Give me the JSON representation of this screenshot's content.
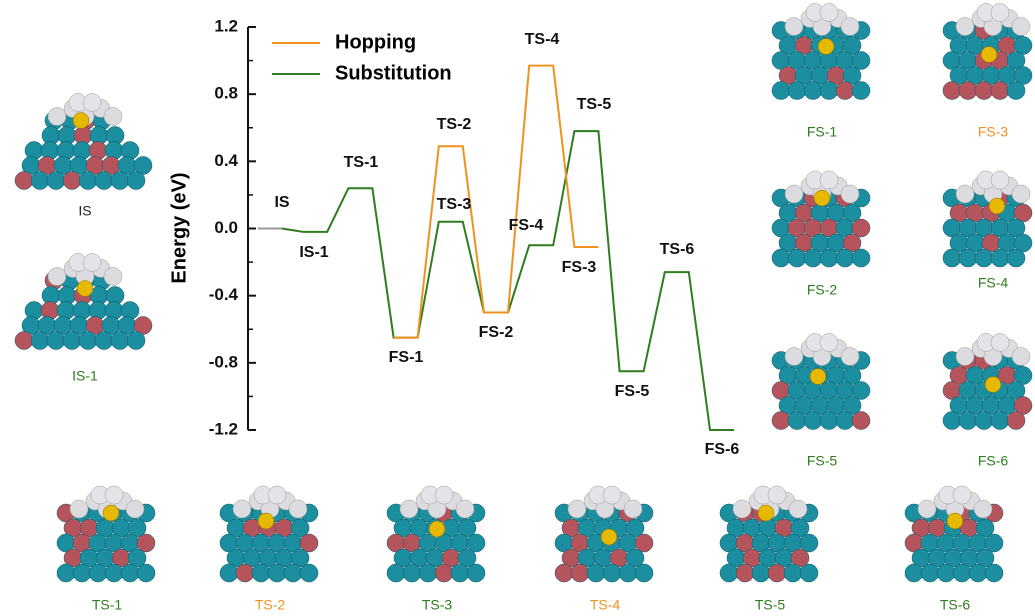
{
  "chart_data": {
    "type": "line",
    "y_label": "Energy (eV)",
    "ylim": [
      -1.2,
      1.2
    ],
    "yticks": [
      -1.2,
      -0.8,
      -0.4,
      {
        "value": 0,
        "label": "0.0"
      },
      0.4,
      0.8,
      1.2
    ],
    "categories": [
      null,
      null,
      null,
      null,
      null,
      null,
      null,
      null,
      null,
      null,
      null
    ],
    "series": [
      {
        "name": "Substitution",
        "color": "#2e7d1f",
        "values": [
          0,
          -0.02,
          0.24,
          -0.65,
          0.04,
          -0.5,
          -0.1,
          0.58,
          -0.85,
          -0.26,
          -1.2
        ]
      },
      {
        "name": "Hopping",
        "color": "#f0921e",
        "values": [
          null,
          null,
          null,
          -0.65,
          0.49,
          -0.5,
          0.97,
          -0.11,
          null,
          null,
          null
        ]
      },
      {
        "color": "#999999",
        "values": [
          0,
          null,
          null,
          null,
          null,
          null,
          null,
          null,
          null,
          null,
          null
        ]
      }
    ],
    "annotations": [
      "IS",
      "IS-1",
      "TS-1",
      "FS-1",
      "TS-2",
      "TS-3",
      "FS-2",
      "TS-4",
      "FS-4",
      "TS-5",
      "FS-3",
      "FS-5",
      "TS-6",
      "FS-6"
    ]
  },
  "structures": [
    {
      "label": "IS",
      "color": "#222222"
    },
    {
      "label": "IS-1",
      "color": "#2e7d1f"
    },
    {
      "label": "FS-1",
      "color": "#2e7d1f"
    },
    {
      "label": "FS-3",
      "color": "#f0921e"
    },
    {
      "label": "FS-2",
      "color": "#2e7d1f"
    },
    {
      "label": "FS-4",
      "color": "#2e7d1f"
    },
    {
      "label": "FS-5",
      "color": "#2e7d1f"
    },
    {
      "label": "FS-6",
      "color": "#2e7d1f"
    },
    {
      "label": "TS-1",
      "color": "#2e7d1f"
    },
    {
      "label": "TS-2",
      "color": "#f0921e"
    },
    {
      "label": "TS-3",
      "color": "#2e7d1f"
    },
    {
      "label": "TS-4",
      "color": "#f0921e"
    },
    {
      "label": "TS-5",
      "color": "#2e7d1f"
    },
    {
      "label": "TS-6",
      "color": "#2e7d1f"
    }
  ]
}
